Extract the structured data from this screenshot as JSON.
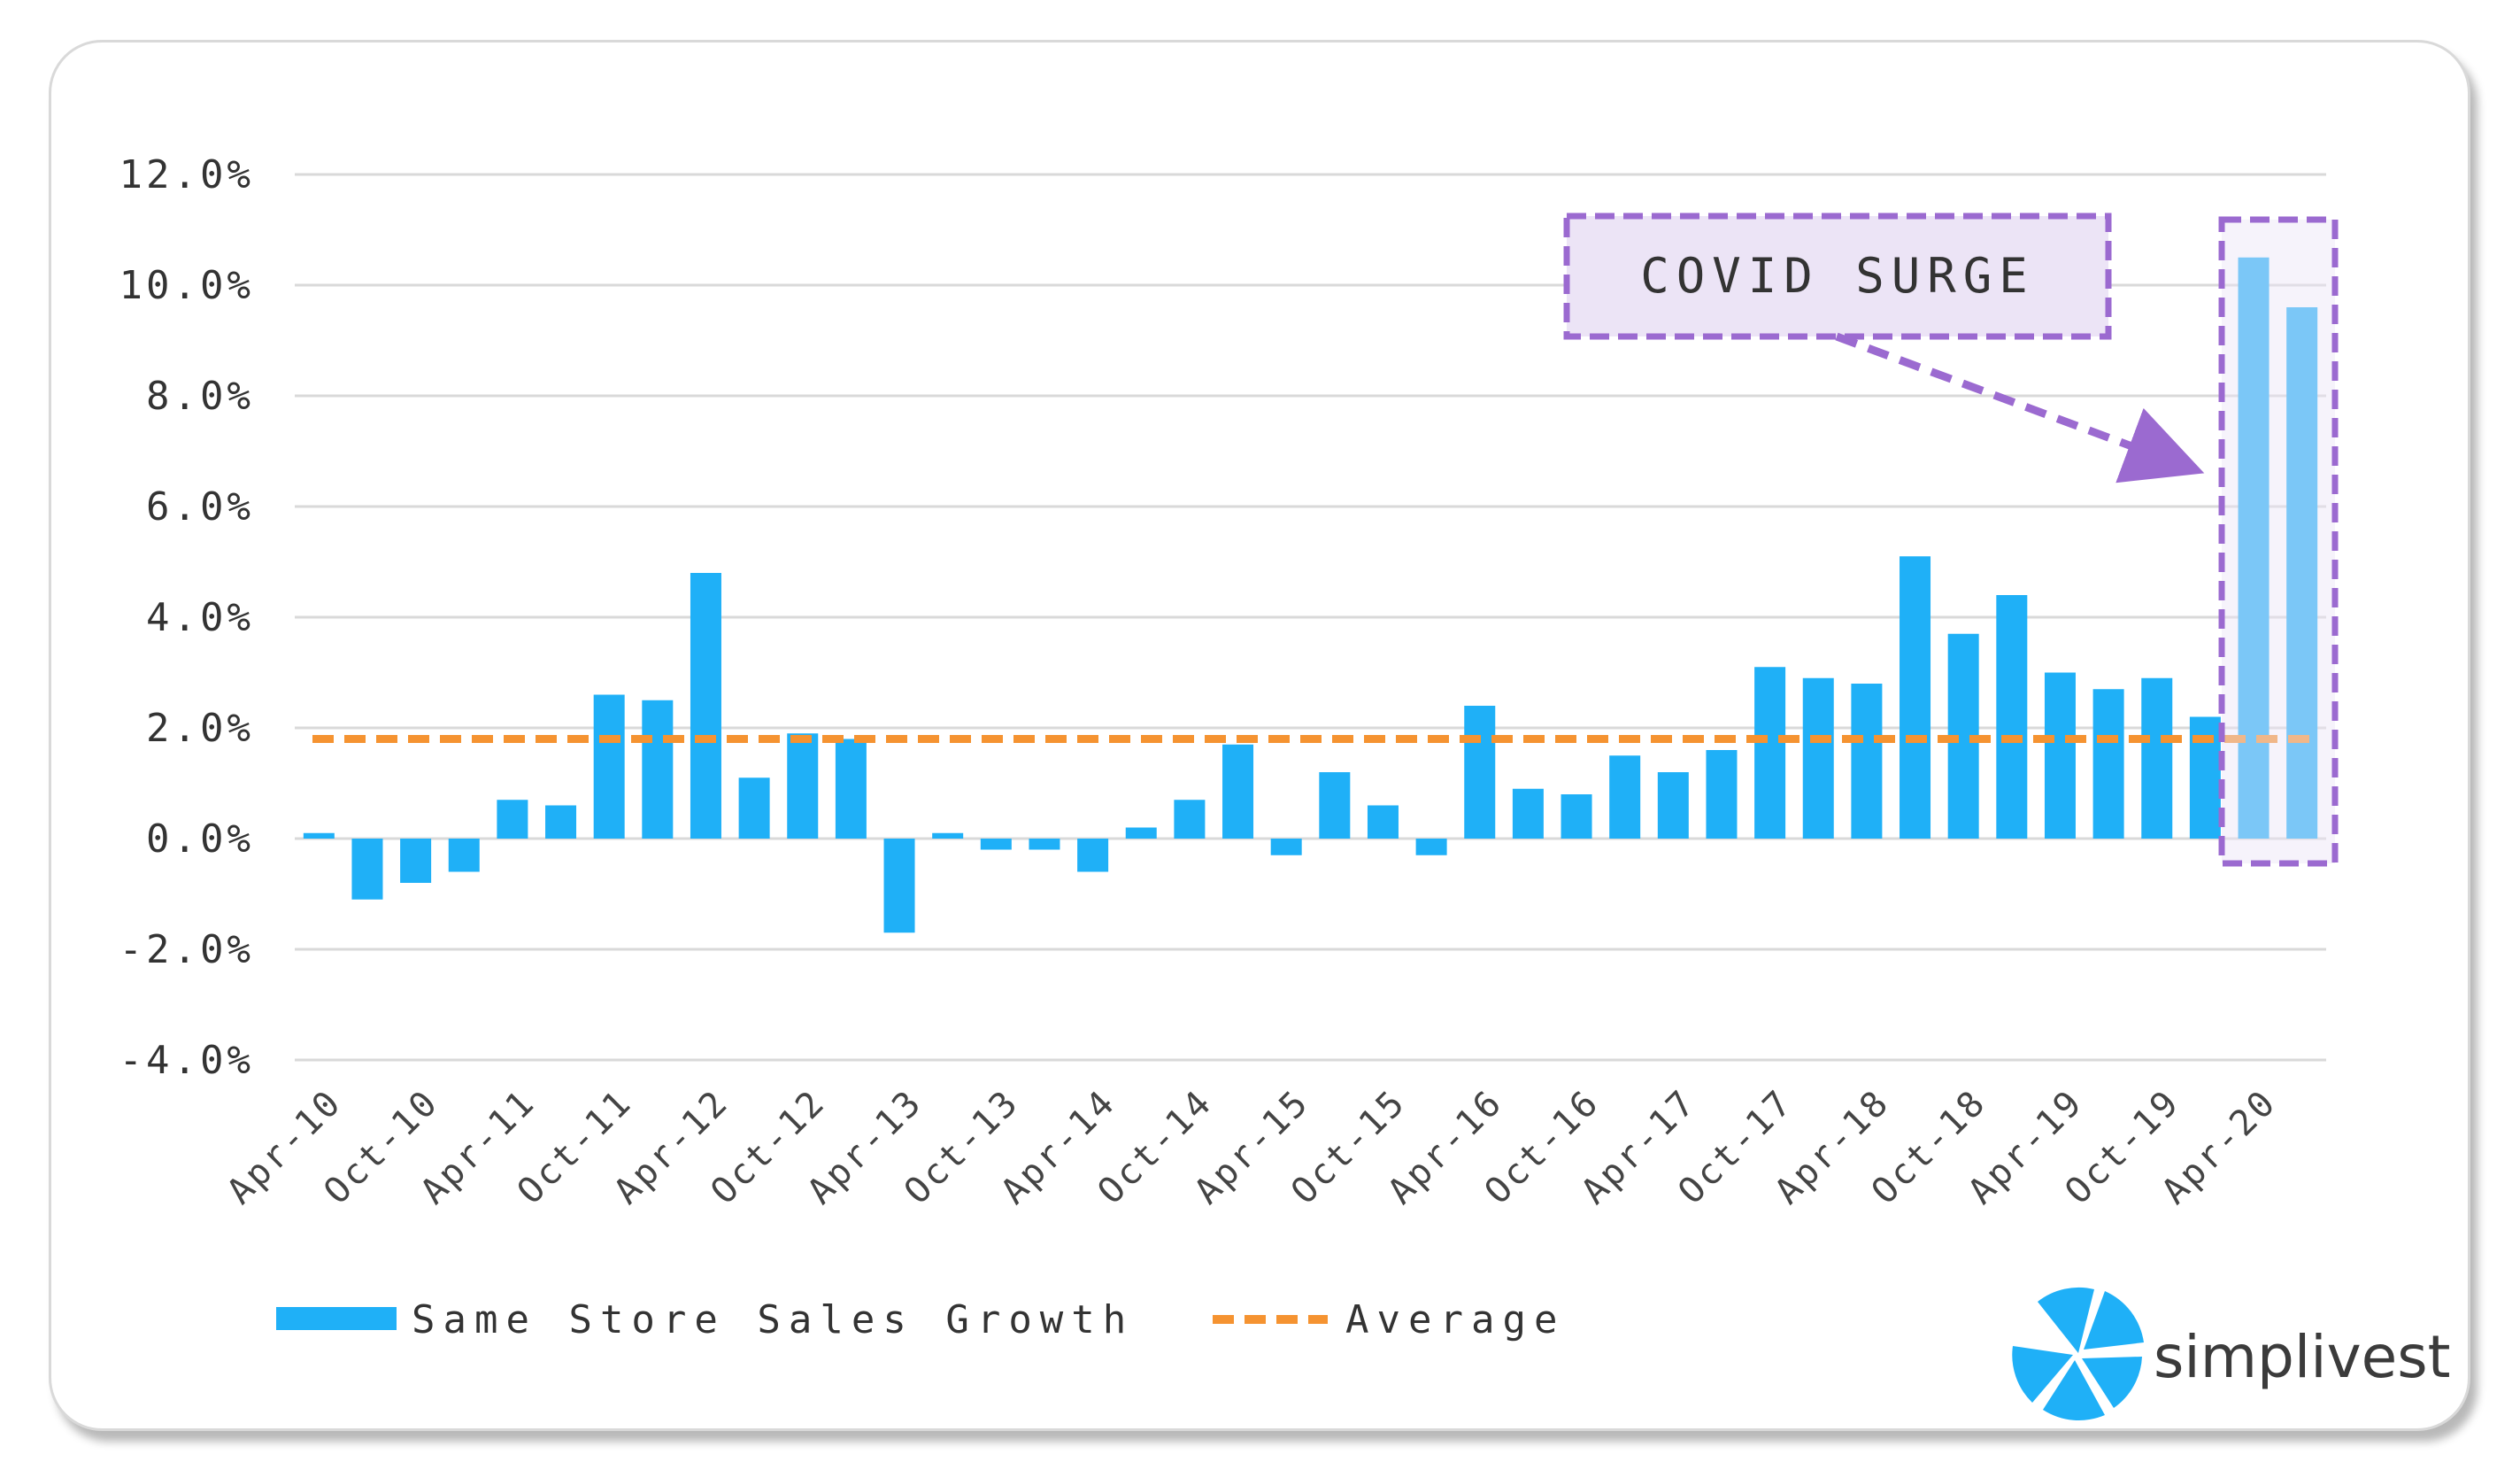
{
  "chart_data": {
    "type": "bar",
    "categories": [
      "Apr-10",
      "",
      "Oct-10",
      "",
      "Apr-11",
      "",
      "Oct-11",
      "",
      "Apr-12",
      "",
      "Oct-12",
      "",
      "Apr-13",
      "",
      "Oct-13",
      "",
      "Apr-14",
      "",
      "Oct-14",
      "",
      "Apr-15",
      "",
      "Oct-15",
      "",
      "Apr-16",
      "",
      "Oct-16",
      "",
      "Apr-17",
      "",
      "Oct-17",
      "",
      "Apr-18",
      "",
      "Oct-18",
      "",
      "Apr-19",
      "",
      "Oct-19",
      "",
      "Apr-20",
      ""
    ],
    "series": [
      {
        "name": "Same Store Sales Growth",
        "values": [
          0.1,
          -1.1,
          -0.8,
          -0.6,
          0.7,
          0.6,
          2.6,
          2.5,
          4.8,
          1.1,
          1.9,
          1.8,
          -1.7,
          0.1,
          -0.2,
          -0.2,
          -0.6,
          0.2,
          0.7,
          1.7,
          -0.3,
          1.2,
          0.6,
          -0.3,
          2.4,
          0.9,
          0.8,
          1.5,
          1.2,
          1.6,
          3.1,
          2.9,
          2.8,
          5.1,
          3.7,
          4.4,
          3.0,
          2.7,
          2.9,
          2.2,
          10.5,
          9.6
        ]
      }
    ],
    "average": {
      "name": "Average",
      "value": 1.8
    },
    "ylim": [
      -4.0,
      12.0
    ],
    "yticks": [
      "12.0%",
      "10.0%",
      "8.0%",
      "6.0%",
      "4.0%",
      "2.0%",
      "0.0%",
      "-2.0%",
      "-4.0%"
    ],
    "ytick_values": [
      12,
      10,
      8,
      6,
      4,
      2,
      0,
      -2,
      -4
    ],
    "xlabel": "",
    "ylabel": "",
    "title": "",
    "grid": true,
    "legend": "bottom-left",
    "annotation": {
      "text": "COVID SURGE",
      "highlight_categories": [
        "Apr-20",
        ""
      ]
    }
  },
  "colors": {
    "bar": "#1fb0f7",
    "average": "#f59331",
    "grid": "#d9d9d9",
    "annotation_border": "#9b6ad0",
    "annotation_fill": "#ece4f6",
    "logo_blue": "#1fb0f7"
  },
  "branding": {
    "logo_text": "simplivest",
    "logo_icon": "simplivest-logo-icon"
  }
}
